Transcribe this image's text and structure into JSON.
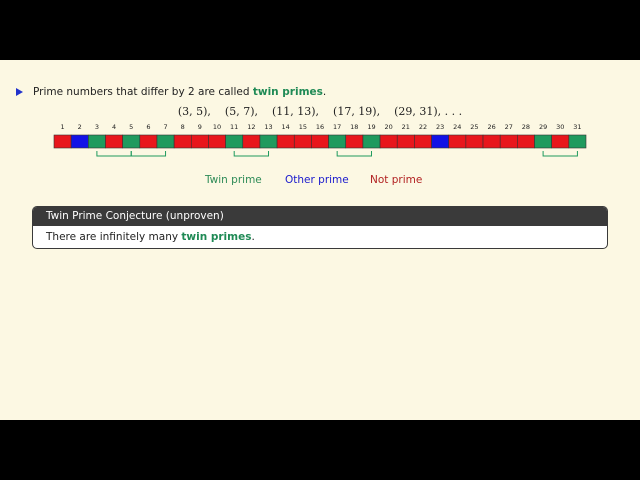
{
  "bullet": {
    "text_before": "Prime numbers that differ by 2 are called ",
    "emphasis": "twin primes",
    "text_after": "."
  },
  "math_line": "(3, 5),    (5, 7),    (11, 13),    (17, 19),    (29, 31), . . .",
  "strip": {
    "cells": [
      {
        "n": 1,
        "color": "#e8161c"
      },
      {
        "n": 2,
        "color": "#1212e6"
      },
      {
        "n": 3,
        "color": "#1f9a5e"
      },
      {
        "n": 4,
        "color": "#e8161c"
      },
      {
        "n": 5,
        "color": "#1f9a5e"
      },
      {
        "n": 6,
        "color": "#e8161c"
      },
      {
        "n": 7,
        "color": "#1f9a5e"
      },
      {
        "n": 8,
        "color": "#e8161c"
      },
      {
        "n": 9,
        "color": "#e8161c"
      },
      {
        "n": 10,
        "color": "#e8161c"
      },
      {
        "n": 11,
        "color": "#1f9a5e"
      },
      {
        "n": 12,
        "color": "#e8161c"
      },
      {
        "n": 13,
        "color": "#1f9a5e"
      },
      {
        "n": 14,
        "color": "#e8161c"
      },
      {
        "n": 15,
        "color": "#e8161c"
      },
      {
        "n": 16,
        "color": "#e8161c"
      },
      {
        "n": 17,
        "color": "#1f9a5e"
      },
      {
        "n": 18,
        "color": "#e8161c"
      },
      {
        "n": 19,
        "color": "#1f9a5e"
      },
      {
        "n": 20,
        "color": "#e8161c"
      },
      {
        "n": 21,
        "color": "#e8161c"
      },
      {
        "n": 22,
        "color": "#e8161c"
      },
      {
        "n": 23,
        "color": "#1212e6"
      },
      {
        "n": 24,
        "color": "#e8161c"
      },
      {
        "n": 25,
        "color": "#e8161c"
      },
      {
        "n": 26,
        "color": "#e8161c"
      },
      {
        "n": 27,
        "color": "#e8161c"
      },
      {
        "n": 28,
        "color": "#e8161c"
      },
      {
        "n": 29,
        "color": "#1f9a5e"
      },
      {
        "n": 30,
        "color": "#e8161c"
      },
      {
        "n": 31,
        "color": "#1f9a5e"
      }
    ],
    "brackets": [
      [
        3,
        5
      ],
      [
        5,
        7
      ],
      [
        11,
        13
      ],
      [
        17,
        19
      ],
      [
        29,
        31
      ]
    ],
    "bracket_color": "#1f9a5e"
  },
  "legend": [
    {
      "label": "Twin prime",
      "color": "#2e8b57"
    },
    {
      "label": "Other prime",
      "color": "#1a1acd"
    },
    {
      "label": "Not prime",
      "color": "#b22222"
    }
  ],
  "block": {
    "title": "Twin Prime Conjecture (unproven)",
    "text_before": "There are infinitely many ",
    "emphasis": "twin primes",
    "text_after": "."
  }
}
